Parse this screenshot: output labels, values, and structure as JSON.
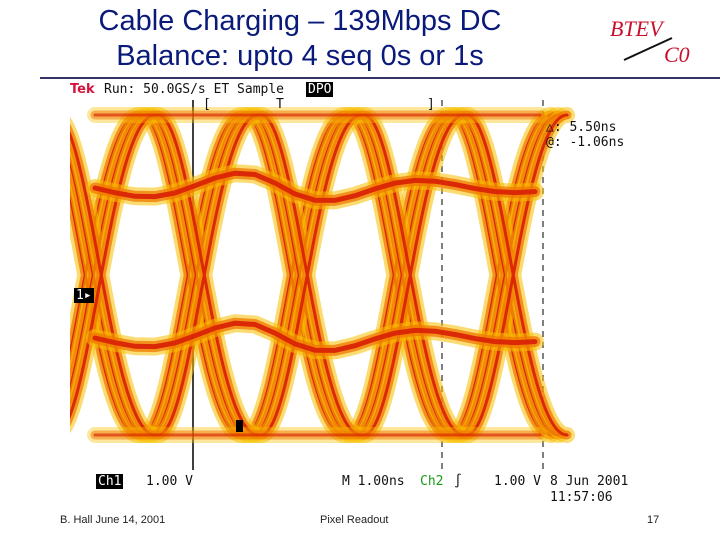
{
  "title": {
    "line1": "Cable Charging – 139Mbps DC",
    "line2": "Balance: upto 4 seq 0s or 1s"
  },
  "logo": {
    "top": "BTEV",
    "bottom": "C0",
    "color": "#c8102e"
  },
  "scope": {
    "brand": "Tek",
    "run": "Run: 50.0GS/s ET Sample",
    "mode": "DPO",
    "bracket_left": "[",
    "trigger_marker": "T",
    "bracket_right": "]",
    "delta": "△: 5.50ns",
    "at": "@: -1.06ns",
    "channel_marker": "1▸",
    "ch1_label": "Ch1",
    "ch1_scale": "1.00 V",
    "timebase": "M 1.00ns",
    "ch2_label": "Ch2",
    "ch2_slope": "∫",
    "ch2_scale": "1.00 V",
    "date": "8 Jun 2001",
    "time": "11:57:06",
    "colors": {
      "trace_core": "#d81e05",
      "trace_mid": "#f07800",
      "trace_outer": "#f8c000",
      "text_red": "#d4143c",
      "text_green": "#1a9a1a"
    }
  },
  "footer": {
    "left": "B. Hall June 14, 2001",
    "center": "Pixel Readout",
    "page": "17"
  }
}
